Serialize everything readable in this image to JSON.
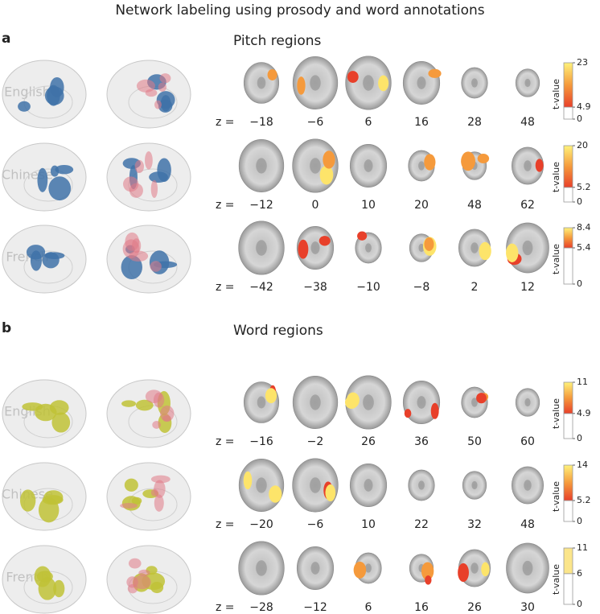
{
  "title": "Network labeling using prosody and word annotations",
  "z_label": "z =",
  "panels": [
    {
      "label": "a",
      "title": "Pitch regions",
      "kind": "pitch",
      "rows": [
        {
          "name": "English",
          "z": [
            "−18",
            "−6",
            "6",
            "16",
            "28",
            "48"
          ],
          "colorbar": {
            "label": "t-value",
            "ticks": [
              0,
              4.9,
              23
            ]
          }
        },
        {
          "name": "Chinese",
          "z": [
            "−12",
            "0",
            "10",
            "20",
            "48",
            "62"
          ],
          "colorbar": {
            "label": "t-value",
            "ticks": [
              0,
              5.2,
              20
            ]
          }
        },
        {
          "name": "French",
          "z": [
            "−42",
            "−38",
            "−10",
            "−8",
            "2",
            "12"
          ],
          "colorbar": {
            "label": "t-value",
            "ticks": [
              0,
              5.4,
              8.4
            ]
          }
        }
      ]
    },
    {
      "label": "b",
      "title": "Word regions",
      "kind": "word",
      "rows": [
        {
          "name": "English",
          "z": [
            "−16",
            "−2",
            "26",
            "36",
            "50",
            "60"
          ],
          "colorbar": {
            "label": "t-value",
            "ticks": [
              0,
              4.9,
              11
            ]
          }
        },
        {
          "name": "Chinese",
          "z": [
            "−20",
            "−6",
            "10",
            "22",
            "32",
            "48"
          ],
          "colorbar": {
            "label": "t-value",
            "ticks": [
              0,
              5.2,
              14
            ]
          }
        },
        {
          "name": "French",
          "z": [
            "−28",
            "−12",
            "6",
            "16",
            "26",
            "30"
          ],
          "colorbar": {
            "label": "t-value",
            "ticks": [
              0,
              6,
              11
            ]
          }
        }
      ]
    }
  ]
}
